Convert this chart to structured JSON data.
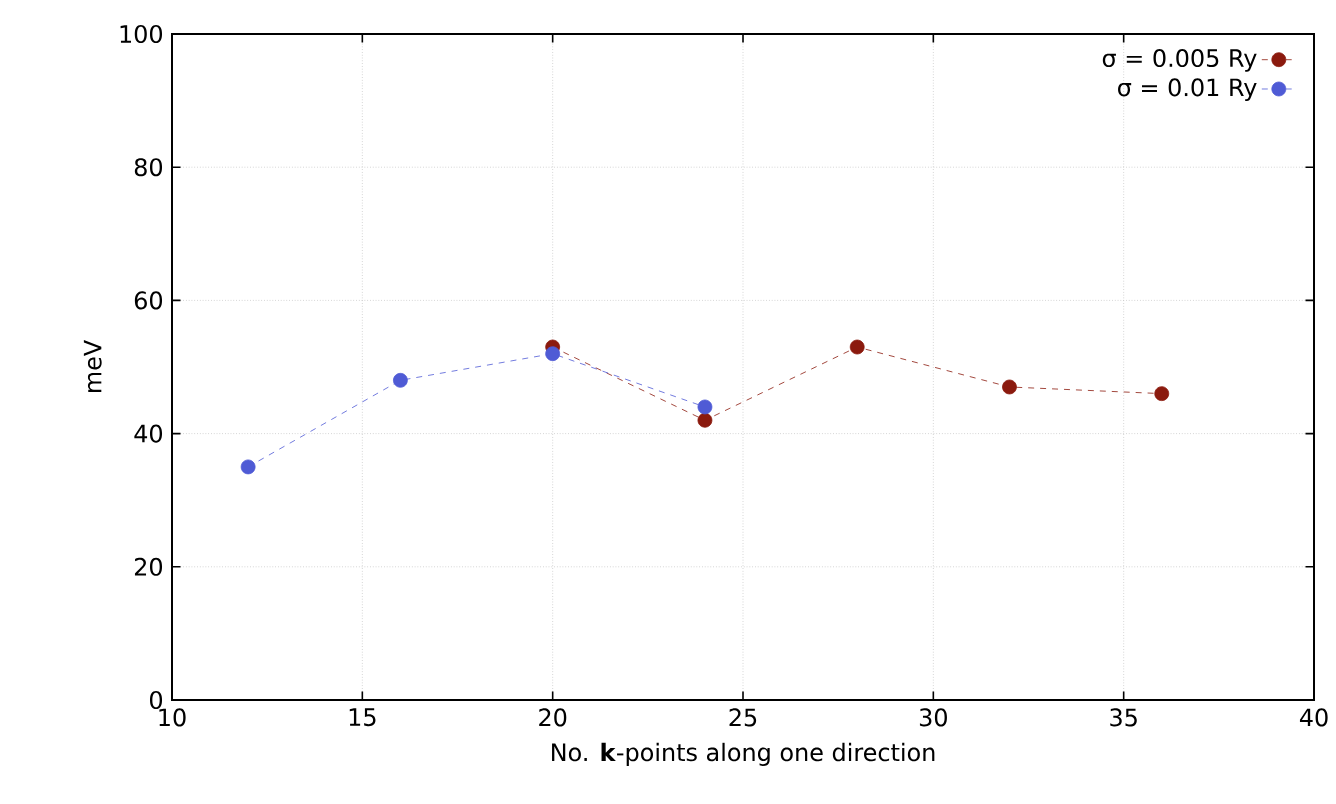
{
  "chart_data": {
    "type": "line",
    "xlabel": "No. **k**-points along one direction",
    "ylabel": "meV",
    "xlim": [
      10,
      40
    ],
    "xticks": [
      10,
      15,
      20,
      25,
      30,
      35,
      40
    ],
    "ylim": [
      0,
      100
    ],
    "yticks": [
      0,
      20,
      40,
      60,
      80,
      100
    ],
    "grid": true,
    "legend": "top right",
    "marker": "circle",
    "line_style": "dashed",
    "series": [
      {
        "name": "σ = 0.005 Ry",
        "color": "#8b1a0e",
        "x": [
          20,
          24,
          28,
          32,
          36
        ],
        "values": [
          53,
          42,
          53,
          47,
          46
        ]
      },
      {
        "name": "σ = 0.01 Ry",
        "color": "#4f5bd5",
        "x": [
          12,
          16,
          20,
          24
        ],
        "values": [
          35,
          48,
          52,
          44
        ]
      }
    ]
  }
}
